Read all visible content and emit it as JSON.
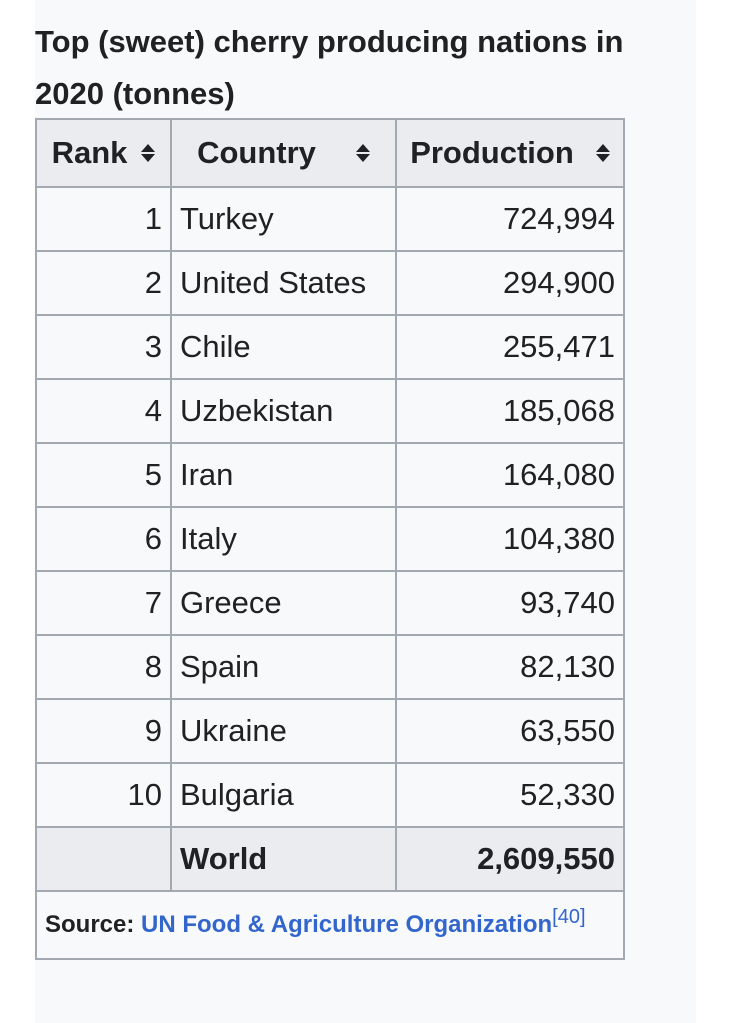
{
  "caption": "Top (sweet) cherry producing nations in 2020 (tonnes)",
  "headers": {
    "rank": "Rank",
    "country": "Country",
    "production": "Production",
    "sort_icon": "sort-updown-icon"
  },
  "rows": [
    {
      "rank": "1",
      "country": "Turkey",
      "production": "724,994"
    },
    {
      "rank": "2",
      "country": "United States",
      "production": "294,900"
    },
    {
      "rank": "3",
      "country": "Chile",
      "production": "255,471"
    },
    {
      "rank": "4",
      "country": "Uzbekistan",
      "production": "185,068"
    },
    {
      "rank": "5",
      "country": "Iran",
      "production": "164,080"
    },
    {
      "rank": "6",
      "country": "Italy",
      "production": "104,380"
    },
    {
      "rank": "7",
      "country": "Greece",
      "production": "93,740"
    },
    {
      "rank": "8",
      "country": "Spain",
      "production": "82,130"
    },
    {
      "rank": "9",
      "country": "Ukraine",
      "production": "63,550"
    },
    {
      "rank": "10",
      "country": "Bulgaria",
      "production": "52,330"
    }
  ],
  "total": {
    "label": "World",
    "production": "2,609,550"
  },
  "source": {
    "label": "Source:",
    "link_text": "UN Food & Agriculture Organization",
    "ref": "[40]"
  },
  "colors": {
    "link": "#3366cc",
    "header_bg": "#eaecf0",
    "border": "#a2a9b1"
  }
}
